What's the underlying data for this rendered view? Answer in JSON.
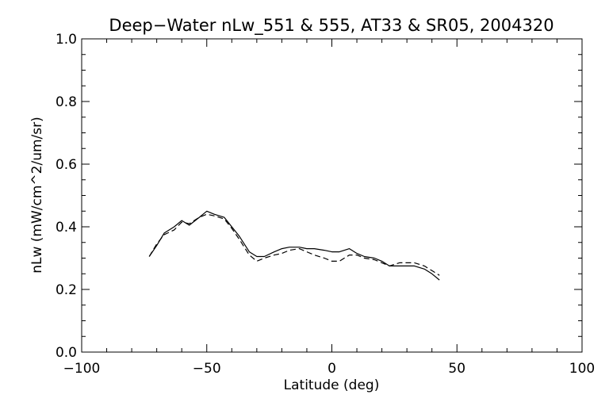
{
  "chart_data": {
    "type": "line",
    "title": "Deep−Water nLw_551 & 555, AT33 & SR05, 2004320",
    "xlabel": "Latitude (deg)",
    "ylabel": "nLw (mW/cm^2/um/sr)",
    "xlim": [
      -100,
      100
    ],
    "ylim": [
      0.0,
      1.0
    ],
    "xticks": [
      -100,
      -50,
      0,
      50,
      100
    ],
    "xtick_labels": [
      "−100",
      "−50",
      "0",
      "50",
      "100"
    ],
    "yticks": [
      0.0,
      0.2,
      0.4,
      0.6,
      0.8,
      1.0
    ],
    "ytick_labels": [
      "0.0",
      "0.2",
      "0.4",
      "0.6",
      "0.8",
      "1.0"
    ],
    "grid": false,
    "series": [
      {
        "style": "solid",
        "color": "#000000",
        "x": [
          -73,
          -70,
          -67,
          -63,
          -60,
          -57,
          -53,
          -50,
          -47,
          -43,
          -40,
          -37,
          -33,
          -30,
          -27,
          -23,
          -20,
          -17,
          -13,
          -10,
          -7,
          -3,
          0,
          3,
          7,
          10,
          13,
          17,
          20,
          23,
          27,
          30,
          33,
          37,
          40,
          43
        ],
        "y": [
          0.305,
          0.34,
          0.38,
          0.4,
          0.42,
          0.405,
          0.43,
          0.45,
          0.44,
          0.43,
          0.4,
          0.37,
          0.32,
          0.305,
          0.305,
          0.32,
          0.33,
          0.335,
          0.335,
          0.33,
          0.33,
          0.325,
          0.32,
          0.32,
          0.33,
          0.315,
          0.305,
          0.3,
          0.29,
          0.275,
          0.275,
          0.275,
          0.275,
          0.265,
          0.25,
          0.23
        ]
      },
      {
        "style": "dashed",
        "color": "#000000",
        "x": [
          -73,
          -70,
          -67,
          -63,
          -60,
          -57,
          -53,
          -50,
          -47,
          -43,
          -40,
          -37,
          -33,
          -30,
          -27,
          -23,
          -20,
          -17,
          -13,
          -10,
          -7,
          -3,
          0,
          3,
          7,
          10,
          13,
          17,
          20,
          23,
          27,
          30,
          33,
          37,
          40,
          43
        ],
        "y": [
          0.305,
          0.345,
          0.375,
          0.39,
          0.415,
          0.41,
          0.43,
          0.44,
          0.435,
          0.425,
          0.395,
          0.36,
          0.31,
          0.29,
          0.3,
          0.31,
          0.315,
          0.325,
          0.33,
          0.32,
          0.31,
          0.3,
          0.29,
          0.29,
          0.31,
          0.31,
          0.3,
          0.295,
          0.285,
          0.275,
          0.285,
          0.285,
          0.285,
          0.275,
          0.26,
          0.245
        ]
      }
    ]
  }
}
